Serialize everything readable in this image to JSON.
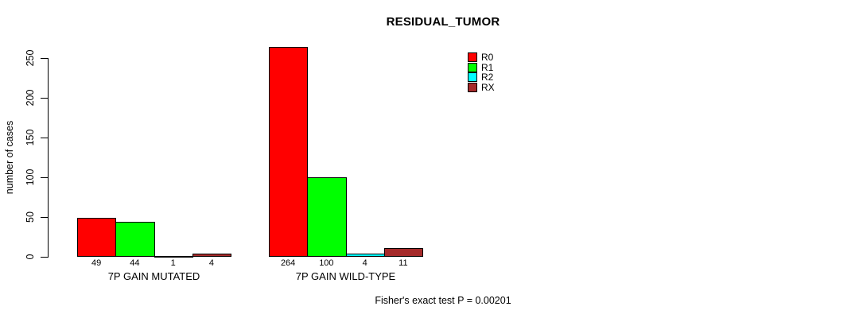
{
  "annotation": "Fisher's exact test P = 0.00201",
  "chart_data": {
    "type": "bar",
    "grouped": true,
    "title": "RESIDUAL_TUMOR",
    "xlabel": "",
    "ylabel": "number of cases",
    "categories": [
      "7P GAIN MUTATED",
      "7P GAIN WILD-TYPE"
    ],
    "series": [
      {
        "name": "R0",
        "color": "#FF0000",
        "values": [
          49,
          264
        ]
      },
      {
        "name": "R1",
        "color": "#00FF00",
        "values": [
          44,
          100
        ]
      },
      {
        "name": "R2",
        "color": "#00FFFF",
        "values": [
          1,
          4
        ]
      },
      {
        "name": "RX",
        "color": "#A52A2A",
        "values": [
          4,
          11
        ]
      }
    ],
    "yticks": [
      0,
      50,
      100,
      150,
      200,
      250
    ],
    "ylim": [
      0,
      264
    ],
    "bar_value_labels": true,
    "legend_position": "top-right",
    "grid": false
  }
}
